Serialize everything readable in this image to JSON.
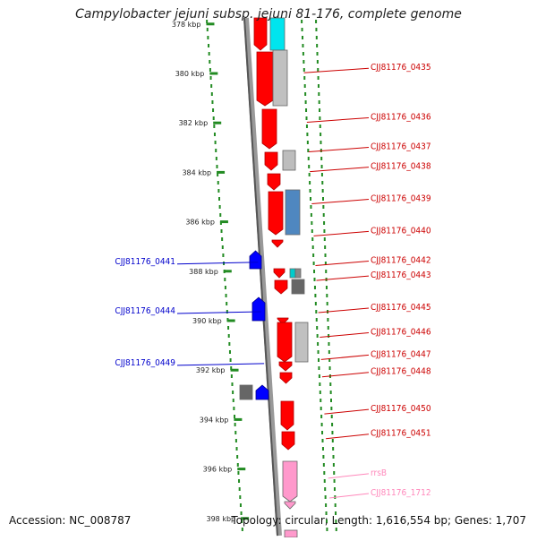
{
  "title": "Campylobacter jejuni subsp. jejuni 81-176, complete genome",
  "footer": {
    "accession": "Accession: NC_008787",
    "summary": "Topology: circular; Length: 1,616,554 bp; Genes: 1,707"
  },
  "colors": {
    "forward": "#ff0000",
    "reverse": "#0000ff",
    "rrna": "#ff99cc",
    "backbone": "#888888",
    "track_dots": "#228b22"
  },
  "ticks": [
    {
      "label": "378 kbp",
      "kb": 378
    },
    {
      "label": "380 kbp",
      "kb": 380
    },
    {
      "label": "382 kbp",
      "kb": 382
    },
    {
      "label": "384 kbp",
      "kb": 384
    },
    {
      "label": "386 kbp",
      "kb": 386
    },
    {
      "label": "388 kbp",
      "kb": 388
    },
    {
      "label": "390 kbp",
      "kb": 390
    },
    {
      "label": "392 kbp",
      "kb": 392
    },
    {
      "label": "394 kbp",
      "kb": 394
    },
    {
      "label": "396 kbp",
      "kb": 396
    },
    {
      "label": "398 kbp",
      "kb": 398
    }
  ],
  "right_labels": [
    {
      "text": "CJJ81176_0435",
      "kb": 379.9
    },
    {
      "text": "CJJ81176_0436",
      "kb": 381.9
    },
    {
      "text": "CJJ81176_0437",
      "kb": 383.1
    },
    {
      "text": "CJJ81176_0438",
      "kb": 383.9
    },
    {
      "text": "CJJ81176_0439",
      "kb": 385.2
    },
    {
      "text": "CJJ81176_0440",
      "kb": 386.5
    },
    {
      "text": "CJJ81176_0442",
      "kb": 387.7
    },
    {
      "text": "CJJ81176_0443",
      "kb": 388.3
    },
    {
      "text": "CJJ81176_0445",
      "kb": 389.6
    },
    {
      "text": "CJJ81176_0446",
      "kb": 390.6
    },
    {
      "text": "CJJ81176_0447",
      "kb": 391.5
    },
    {
      "text": "CJJ81176_0448",
      "kb": 392.2
    },
    {
      "text": "CJJ81176_0450",
      "kb": 393.7
    },
    {
      "text": "CJJ81176_0451",
      "kb": 394.7
    },
    {
      "text": "rrsB",
      "kb": 396.3,
      "kind": "rrna"
    },
    {
      "text": "CJJ81176_1712",
      "kb": 397.1,
      "kind": "rrna"
    }
  ],
  "left_labels": [
    {
      "text": "CJJ81176_0441",
      "kb": 387.6
    },
    {
      "text": "CJJ81176_0444",
      "kb": 389.6
    },
    {
      "text": "CJJ81176_0449",
      "kb": 391.7
    }
  ]
}
